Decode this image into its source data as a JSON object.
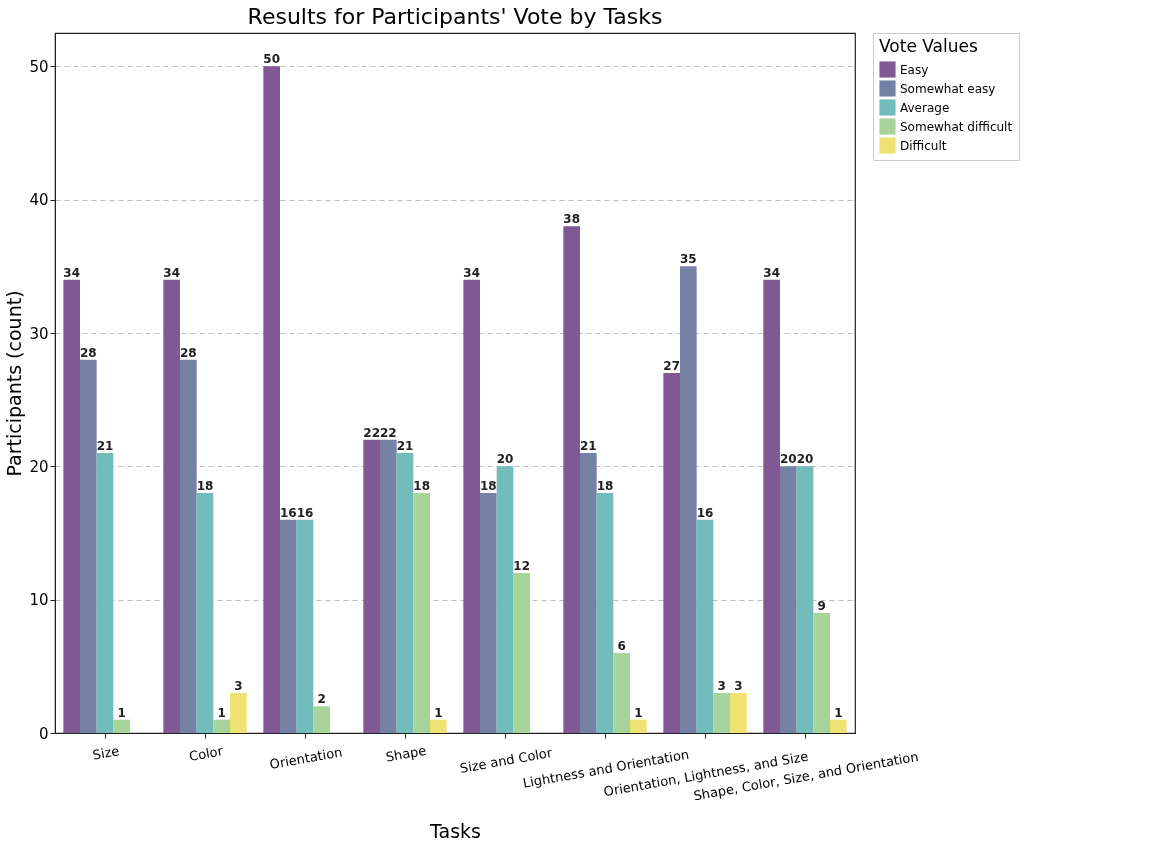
{
  "chart_data": {
    "type": "bar",
    "title": "Results for Participants' Vote by Tasks",
    "xlabel": "Tasks",
    "ylabel": "Participants (count)",
    "legend_title": "Vote Values",
    "categories": [
      "Size",
      "Color",
      "Orientation",
      "Shape",
      "Size and Color",
      "Lightness and Orientation",
      "Orientation, Lightness, and Size",
      "Shape, Color, Size, and Orientation"
    ],
    "series": [
      {
        "name": "Easy",
        "color": "#7f5894",
        "values": [
          34,
          34,
          50,
          22,
          34,
          38,
          27,
          34
        ],
        "value_labels": [
          "34",
          "34",
          "50",
          "22",
          "34",
          "38",
          "27",
          "34"
        ]
      },
      {
        "name": "Somewhat easy",
        "color": "#7582a6",
        "values": [
          28,
          28,
          16,
          22,
          18,
          21,
          35,
          20
        ],
        "value_labels": [
          "28",
          "28",
          "16",
          "22",
          "18",
          "21",
          "35",
          "20"
        ]
      },
      {
        "name": "Average",
        "color": "#72bdbb",
        "values": [
          21,
          18,
          16,
          21,
          20,
          18,
          16,
          20
        ],
        "value_labels": [
          "21",
          "18",
          "16",
          "21",
          "20",
          "18",
          "16",
          "20"
        ]
      },
      {
        "name": "Somewhat difficult",
        "color": "#a6d49a",
        "values": [
          1,
          1,
          2,
          18,
          12,
          6,
          3,
          9
        ],
        "value_labels": [
          "1",
          "1",
          "2",
          "18",
          "12",
          "6",
          "3",
          "9"
        ]
      },
      {
        "name": "Difficult",
        "color": "#f0e272",
        "values": [
          null,
          3,
          null,
          1,
          null,
          1,
          3,
          1
        ],
        "value_labels": [
          null,
          "3",
          null,
          "1",
          null,
          "1",
          "3",
          "1"
        ]
      }
    ],
    "ylim": [
      0,
      52.5
    ],
    "yticks": [
      0,
      10,
      20,
      30,
      40,
      50
    ],
    "grid": "y",
    "legend": "top right"
  }
}
